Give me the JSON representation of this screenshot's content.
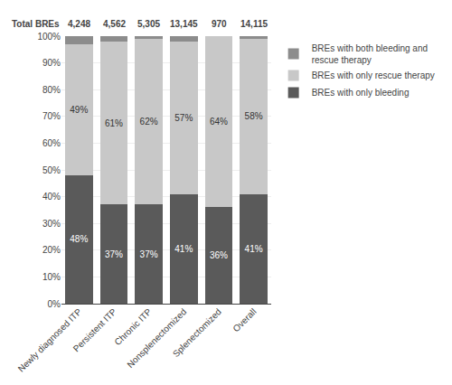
{
  "chart_data": {
    "type": "bar",
    "stacked": true,
    "categories": [
      "Newly diagnosed ITP",
      "Persistent ITP",
      "Chronic ITP",
      "Nonsplenectomized",
      "Splenectomized",
      "Overall"
    ],
    "series": [
      {
        "name": "BREs with only bleeding",
        "color": "#5a5a5a",
        "values": [
          48,
          37,
          37,
          41,
          36,
          41
        ],
        "data_labels": true,
        "value_labels": [
          "48%",
          "37%",
          "37%",
          "41%",
          "36%",
          "41%"
        ]
      },
      {
        "name": "BREs with only rescue therapy",
        "color": "#c8c8c8",
        "values": [
          49,
          61,
          62,
          57,
          64,
          58
        ],
        "data_labels": true,
        "value_labels": [
          "49%",
          "61%",
          "62%",
          "57%",
          "64%",
          "58%"
        ]
      },
      {
        "name": "BREs with both bleeding and\nrescue therapy",
        "color": "#8c8c8c",
        "values": [
          3,
          2,
          1,
          2,
          0,
          1
        ]
      }
    ],
    "ylim": [
      0,
      100
    ],
    "yticks": [
      {
        "value": 0,
        "label": "0%"
      },
      {
        "value": 10,
        "label": "10%"
      },
      {
        "value": 20,
        "label": "20%"
      },
      {
        "value": 30,
        "label": "30%"
      },
      {
        "value": 40,
        "label": "40%"
      },
      {
        "value": 50,
        "label": "50%"
      },
      {
        "value": 60,
        "label": "60%"
      },
      {
        "value": 70,
        "label": "70%"
      },
      {
        "value": 80,
        "label": "80%"
      },
      {
        "value": 90,
        "label": "90%"
      },
      {
        "value": 100,
        "label": "100%"
      }
    ],
    "grid": true,
    "legend": "right",
    "annotations": [
      {
        "text": "Total BREs"
      },
      {
        "text": "4,248",
        "category": "Newly diagnosed ITP"
      },
      {
        "text": "4,562",
        "category": "Persistent ITP"
      },
      {
        "text": "5,305",
        "category": "Chronic ITP"
      },
      {
        "text": "13,145",
        "category": "Nonsplenectomized"
      },
      {
        "text": "970",
        "category": "Splenectomized"
      },
      {
        "text": "14,115",
        "category": "Overall"
      }
    ]
  }
}
